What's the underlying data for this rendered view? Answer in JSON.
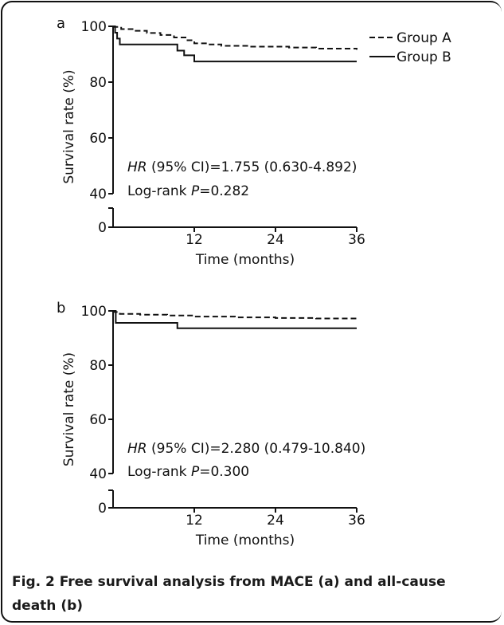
{
  "caption": {
    "line1": "Fig. 2   Free survival analysis from MACE (a) and all-cause",
    "line2": "death (b)"
  },
  "chart_data": [
    {
      "type": "line",
      "panel_label": "a",
      "xlabel": "Time (months)",
      "ylabel": "Survival rate (%)",
      "xlim": [
        0,
        36
      ],
      "ylim": [
        0,
        100
      ],
      "y_axis_break": [
        0,
        40
      ],
      "x_ticks": [
        12,
        24,
        36
      ],
      "y_ticks": [
        0,
        40,
        60,
        80,
        100
      ],
      "legend_position": "top-right",
      "series": [
        {
          "name": "Group A",
          "style": "dashed",
          "color": "#111111",
          "steps": [
            [
              0,
              99.8
            ],
            [
              1.2,
              99.0
            ],
            [
              3,
              98.4
            ],
            [
              5,
              97.6
            ],
            [
              7,
              96.9
            ],
            [
              9,
              96.0
            ],
            [
              11,
              95.0
            ],
            [
              12,
              93.9
            ],
            [
              14,
              93.5
            ],
            [
              16,
              93.0
            ],
            [
              20,
              92.7
            ],
            [
              26,
              92.4
            ],
            [
              30,
              92.0
            ],
            [
              36,
              91.6
            ]
          ]
        },
        {
          "name": "Group B",
          "style": "solid",
          "color": "#111111",
          "steps": [
            [
              0,
              100
            ],
            [
              0.3,
              97.7
            ],
            [
              0.6,
              95.6
            ],
            [
              1,
              93.5
            ],
            [
              9.5,
              91.3
            ],
            [
              10.5,
              89.6
            ],
            [
              12,
              87.4
            ],
            [
              36,
              87.4
            ]
          ]
        }
      ],
      "annotations": [
        {
          "italic": "HR",
          "text": " (95% CI)=1.755 (0.630-4.892)"
        },
        {
          "text": "Log-rank ",
          "italic": "P",
          "text2": "=0.282"
        }
      ]
    },
    {
      "type": "line",
      "panel_label": "b",
      "xlabel": "Time (months)",
      "ylabel": "Survival rate (%)",
      "xlim": [
        0,
        36
      ],
      "ylim": [
        0,
        100
      ],
      "y_axis_break": [
        0,
        40
      ],
      "x_ticks": [
        12,
        24,
        36
      ],
      "y_ticks": [
        0,
        40,
        60,
        80,
        100
      ],
      "series": [
        {
          "name": "Group A",
          "style": "dashed",
          "color": "#111111",
          "steps": [
            [
              0,
              99.6
            ],
            [
              1,
              98.9
            ],
            [
              4,
              98.6
            ],
            [
              8,
              98.3
            ],
            [
              12,
              97.9
            ],
            [
              18,
              97.6
            ],
            [
              24,
              97.4
            ],
            [
              30,
              97.2
            ],
            [
              36,
              96.8
            ]
          ]
        },
        {
          "name": "Group B",
          "style": "solid",
          "color": "#111111",
          "steps": [
            [
              0,
              100
            ],
            [
              0.4,
              95.6
            ],
            [
              9.5,
              95.6
            ],
            [
              9.5,
              93.6
            ],
            [
              36,
              93.6
            ]
          ]
        }
      ],
      "annotations": [
        {
          "italic": "HR",
          "text": " (95% CI)=2.280 (0.479-10.840)"
        },
        {
          "text": "Log-rank ",
          "italic": "P",
          "text2": "=0.300"
        }
      ]
    }
  ]
}
